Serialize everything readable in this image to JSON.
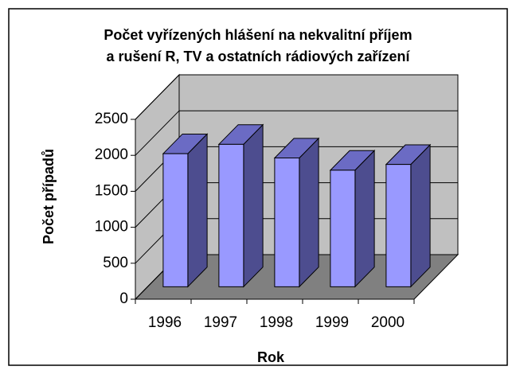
{
  "chart_data": {
    "type": "bar3d",
    "title": [
      "Počet vyřízených hlášení na nekvalitní příjem",
      "a rušení R, TV a ostatních rádiových zařízení"
    ],
    "x_label": "Rok",
    "y_label": "Počet případů",
    "categories": [
      "1996",
      "1997",
      "1998",
      "1999",
      "2000"
    ],
    "values": [
      1850,
      1980,
      1790,
      1620,
      1700
    ],
    "color": "#9999ff",
    "ylim": [
      0,
      2500
    ],
    "yticks": [
      0,
      500,
      1000,
      1500,
      2000,
      2500
    ],
    "grid": true
  }
}
